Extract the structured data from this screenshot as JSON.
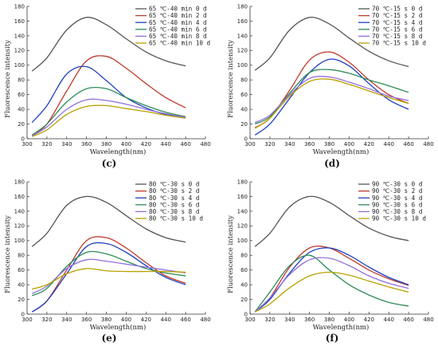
{
  "chart_data": [
    {
      "type": "line",
      "panel_label": "(c)",
      "xlabel": "Wavelength(nm)",
      "ylabel": "Fluorescence intensity",
      "xlim": [
        300,
        480
      ],
      "ylim": [
        0,
        180
      ],
      "xticks": [
        300,
        320,
        340,
        360,
        380,
        400,
        420,
        440,
        460,
        480
      ],
      "yticks": [
        0,
        20,
        40,
        60,
        80,
        100,
        120,
        140,
        160,
        180
      ],
      "legend_position": "top-right",
      "series": [
        {
          "name": "65 ℃-40 min 0 d",
          "color": "#555555",
          "x": [
            305,
            320,
            340,
            360,
            380,
            400,
            420,
            440,
            460
          ],
          "y": [
            92,
            110,
            148,
            165,
            155,
            136,
            118,
            106,
            99
          ]
        },
        {
          "name": "65 ℃-40 min 2 d",
          "color": "#c0392b",
          "x": [
            305,
            320,
            340,
            360,
            380,
            400,
            420,
            440,
            460
          ],
          "y": [
            5,
            20,
            65,
            106,
            112,
            96,
            75,
            56,
            42
          ]
        },
        {
          "name": "65 ℃-40 min 4 d",
          "color": "#1f3fbf",
          "x": [
            305,
            320,
            340,
            360,
            380,
            400,
            420,
            440,
            460
          ],
          "y": [
            22,
            45,
            88,
            98,
            79,
            56,
            42,
            33,
            28
          ]
        },
        {
          "name": "65 ℃-40 min 6 d",
          "color": "#2e8b57",
          "x": [
            305,
            320,
            340,
            360,
            380,
            400,
            420,
            440,
            460
          ],
          "y": [
            5,
            20,
            50,
            68,
            68,
            56,
            45,
            36,
            30
          ]
        },
        {
          "name": "65 ℃-40 min 8 d",
          "color": "#9370db",
          "x": [
            305,
            320,
            340,
            360,
            380,
            400,
            420,
            440,
            460
          ],
          "y": [
            4,
            16,
            40,
            53,
            52,
            47,
            40,
            34,
            29
          ]
        },
        {
          "name": "65 ℃-40 min 10 d",
          "color": "#b8a100",
          "x": [
            305,
            320,
            340,
            360,
            380,
            400,
            420,
            440,
            460
          ],
          "y": [
            3,
            12,
            33,
            44,
            45,
            41,
            37,
            32,
            28
          ]
        }
      ]
    },
    {
      "type": "line",
      "panel_label": "(d)",
      "xlabel": "Wavelength(nm)",
      "ylabel": "Fluorescence intensity",
      "xlim": [
        300,
        480
      ],
      "ylim": [
        0,
        180
      ],
      "xticks": [
        300,
        320,
        340,
        360,
        380,
        400,
        420,
        440,
        460,
        480
      ],
      "yticks": [
        0,
        20,
        40,
        60,
        80,
        100,
        120,
        140,
        160,
        180
      ],
      "legend_position": "top-right",
      "series": [
        {
          "name": "70 ℃-15 s 0 d",
          "color": "#555555",
          "x": [
            305,
            320,
            340,
            360,
            380,
            400,
            420,
            440,
            460
          ],
          "y": [
            93,
            110,
            148,
            165,
            156,
            137,
            119,
            106,
            98
          ]
        },
        {
          "name": "70 ℃-15 s 2 d",
          "color": "#c0392b",
          "x": [
            305,
            320,
            340,
            360,
            380,
            400,
            420,
            440,
            460
          ],
          "y": [
            15,
            28,
            66,
            107,
            118,
            104,
            80,
            60,
            48
          ]
        },
        {
          "name": "70 ℃-15 s 4 d",
          "color": "#1f3fbf",
          "x": [
            305,
            320,
            340,
            360,
            380,
            400,
            420,
            440,
            460
          ],
          "y": [
            5,
            20,
            55,
            90,
            108,
            99,
            75,
            53,
            40
          ]
        },
        {
          "name": "70 ℃-15 s 6 d",
          "color": "#2e8b57",
          "x": [
            305,
            320,
            340,
            360,
            380,
            400,
            420,
            440,
            460
          ],
          "y": [
            20,
            30,
            62,
            90,
            94,
            89,
            80,
            72,
            63
          ]
        },
        {
          "name": "70 ℃-15 s 8 d",
          "color": "#9370db",
          "x": [
            305,
            320,
            340,
            360,
            380,
            400,
            420,
            440,
            460
          ],
          "y": [
            22,
            32,
            60,
            82,
            84,
            77,
            68,
            58,
            52
          ]
        },
        {
          "name": "70 ℃-15 s 10 d",
          "color": "#b8a100",
          "x": [
            305,
            320,
            340,
            360,
            380,
            400,
            420,
            440,
            460
          ],
          "y": [
            14,
            28,
            58,
            78,
            81,
            74,
            65,
            56,
            48
          ]
        }
      ]
    },
    {
      "type": "line",
      "panel_label": "(e)",
      "xlabel": "Wavelength(nm)",
      "ylabel": "Fluorescence intensity",
      "xlim": [
        300,
        480
      ],
      "ylim": [
        0,
        180
      ],
      "xticks": [
        300,
        320,
        340,
        360,
        380,
        400,
        420,
        440,
        460,
        480
      ],
      "yticks": [
        0,
        20,
        40,
        60,
        80,
        100,
        120,
        140,
        160,
        180
      ],
      "legend_position": "top-right",
      "series": [
        {
          "name": "80 ℃-30 s 0 d",
          "color": "#555555",
          "x": [
            305,
            320,
            340,
            360,
            380,
            400,
            420,
            440,
            460
          ],
          "y": [
            92,
            110,
            148,
            160,
            152,
            134,
            116,
            104,
            98
          ]
        },
        {
          "name": "80 ℃-30 s 2 d",
          "color": "#c0392b",
          "x": [
            305,
            320,
            340,
            360,
            380,
            400,
            420,
            440,
            460
          ],
          "y": [
            3,
            18,
            60,
            100,
            104,
            90,
            70,
            52,
            42
          ]
        },
        {
          "name": "80 ℃-30 s 4 d",
          "color": "#1f3fbf",
          "x": [
            305,
            320,
            340,
            360,
            380,
            400,
            420,
            440,
            460
          ],
          "y": [
            3,
            18,
            55,
            92,
            96,
            84,
            66,
            50,
            40
          ]
        },
        {
          "name": "80 ℃-30 s 6 d",
          "color": "#2e8b57",
          "x": [
            305,
            320,
            340,
            360,
            380,
            400,
            420,
            440,
            460
          ],
          "y": [
            25,
            35,
            65,
            84,
            82,
            72,
            62,
            56,
            52
          ]
        },
        {
          "name": "80 ℃-30 s 8 d",
          "color": "#9370db",
          "x": [
            305,
            320,
            340,
            360,
            380,
            400,
            420,
            440,
            460
          ],
          "y": [
            28,
            38,
            62,
            74,
            72,
            68,
            64,
            60,
            56
          ]
        },
        {
          "name": "80 ℃-30 s 10 d",
          "color": "#b8a100",
          "x": [
            305,
            320,
            340,
            360,
            380,
            400,
            420,
            440,
            460
          ],
          "y": [
            34,
            40,
            55,
            62,
            59,
            58,
            58,
            58,
            57
          ]
        }
      ]
    },
    {
      "type": "line",
      "panel_label": "(f)",
      "xlabel": "Wavelength(nm)",
      "ylabel": "Fluorescence intensity",
      "xlim": [
        300,
        480
      ],
      "ylim": [
        0,
        180
      ],
      "xticks": [
        300,
        320,
        340,
        360,
        380,
        400,
        420,
        440,
        460,
        480
      ],
      "yticks": [
        0,
        20,
        40,
        60,
        80,
        100,
        120,
        140,
        160,
        180
      ],
      "legend_position": "top-right",
      "series": [
        {
          "name": "90 ℃-30 s 0 d",
          "color": "#555555",
          "x": [
            305,
            320,
            340,
            360,
            380,
            400,
            420,
            440,
            460
          ],
          "y": [
            92,
            110,
            146,
            160,
            152,
            134,
            117,
            106,
            100
          ]
        },
        {
          "name": "90 ℃-30 s 2 d",
          "color": "#c0392b",
          "x": [
            305,
            320,
            340,
            360,
            380,
            400,
            420,
            440,
            460
          ],
          "y": [
            3,
            22,
            64,
            90,
            90,
            76,
            60,
            48,
            39
          ]
        },
        {
          "name": "90 ℃-30 s 4 d",
          "color": "#1f3fbf",
          "x": [
            305,
            320,
            340,
            360,
            380,
            400,
            420,
            440,
            460
          ],
          "y": [
            3,
            20,
            56,
            84,
            90,
            80,
            64,
            50,
            40
          ]
        },
        {
          "name": "90 ℃-30 s 6 d",
          "color": "#2e8b57",
          "x": [
            305,
            320,
            340,
            360,
            380,
            400,
            420,
            440,
            460
          ],
          "y": [
            3,
            30,
            66,
            80,
            60,
            40,
            26,
            16,
            11
          ]
        },
        {
          "name": "90 ℃-30 s 8 d",
          "color": "#9370db",
          "x": [
            305,
            320,
            340,
            360,
            380,
            400,
            420,
            440,
            460
          ],
          "y": [
            3,
            22,
            54,
            74,
            76,
            66,
            52,
            42,
            35
          ]
        },
        {
          "name": "90 ℃-30 s 10 d",
          "color": "#b8a100",
          "x": [
            305,
            320,
            340,
            360,
            380,
            400,
            420,
            440,
            460
          ],
          "y": [
            3,
            14,
            36,
            52,
            57,
            53,
            45,
            37,
            30
          ]
        }
      ]
    }
  ]
}
